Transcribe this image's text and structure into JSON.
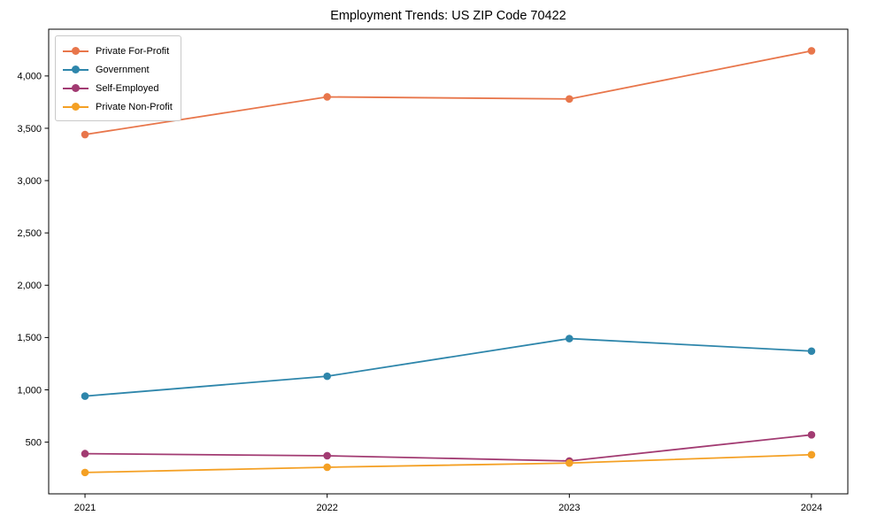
{
  "title": "Employment Trends: US ZIP Code 70422",
  "chart_data": {
    "type": "line",
    "title": "Employment Trends: US ZIP Code 70422",
    "xlabel": "",
    "ylabel": "",
    "categories": [
      2021,
      2022,
      2023,
      2024
    ],
    "series": [
      {
        "name": "Private For-Profit",
        "color": "#E8764B",
        "values": [
          3440,
          3800,
          3780,
          4240
        ]
      },
      {
        "name": "Government",
        "color": "#2E86AB",
        "values": [
          940,
          1130,
          1490,
          1370
        ]
      },
      {
        "name": "Self-Employed",
        "color": "#A23B72",
        "values": [
          390,
          370,
          320,
          570
        ]
      },
      {
        "name": "Private Non-Profit",
        "color": "#F4A024",
        "values": [
          210,
          260,
          300,
          380
        ]
      }
    ],
    "yticks": [
      500,
      1000,
      1500,
      2000,
      2500,
      3000,
      3500,
      4000
    ],
    "ylim": [
      6,
      4447
    ],
    "xlim": [
      2020.85,
      2024.15
    ],
    "grid": false,
    "legend_position": "upper-left",
    "tick_label_format": "thousands-comma",
    "marker": "circle"
  }
}
